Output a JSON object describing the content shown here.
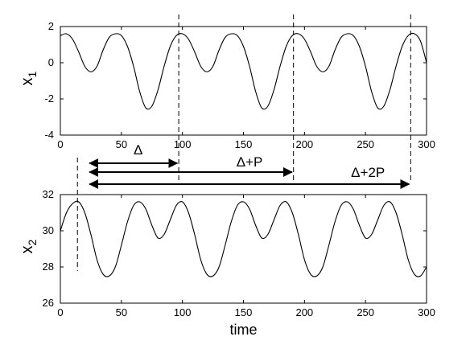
{
  "chart_data": [
    {
      "type": "line",
      "ylabel": "x",
      "ylabel_subscript": "1",
      "xlabel": "",
      "xlim": [
        0,
        300
      ],
      "ylim": [
        -4,
        2
      ],
      "xticks": [
        "0",
        "50",
        "100",
        "150",
        "200",
        "250",
        "300"
      ],
      "yticks": [
        "-4",
        "-2",
        "0",
        "2"
      ],
      "series": [
        {
          "x": [
            0,
            5,
            10,
            15,
            20,
            25,
            30,
            35,
            40,
            45,
            50,
            55,
            60,
            65,
            70,
            75,
            80,
            85,
            90,
            95,
            100,
            105,
            110,
            115,
            120,
            125,
            130,
            135,
            140,
            145,
            150,
            155,
            160,
            165,
            170,
            175,
            180,
            185,
            190,
            195,
            200,
            205,
            210,
            215,
            220,
            225,
            230,
            235,
            240,
            245,
            250,
            255,
            260,
            265,
            270,
            275,
            280,
            285,
            290,
            295,
            300
          ],
          "values": [
            1.5,
            1.6,
            1.3,
            0.6,
            -0.2,
            -0.5,
            -0.2,
            0.7,
            1.4,
            1.6,
            1.5,
            0.9,
            -0.2,
            -1.6,
            -2.5,
            -2.4,
            -1.5,
            -0.2,
            0.9,
            1.5,
            1.6,
            1.3,
            0.6,
            -0.2,
            -0.5,
            -0.2,
            0.7,
            1.4,
            1.6,
            1.5,
            0.9,
            -0.2,
            -1.6,
            -2.5,
            -2.4,
            -1.5,
            -0.2,
            0.9,
            1.5,
            1.6,
            1.3,
            0.6,
            -0.2,
            -0.5,
            -0.2,
            0.7,
            1.4,
            1.6,
            1.5,
            0.9,
            -0.2,
            -1.6,
            -2.5,
            -2.4,
            -1.5,
            -0.2,
            0.9,
            1.5,
            1.6,
            1.2,
            0.0
          ]
        }
      ],
      "vlines_x": [
        97,
        191,
        287
      ]
    },
    {
      "type": "line",
      "ylabel": "x",
      "ylabel_subscript": "2",
      "xlabel": "time",
      "xlim": [
        0,
        300
      ],
      "ylim": [
        26,
        32
      ],
      "xticks": [
        "0",
        "50",
        "100",
        "150",
        "200",
        "250",
        "300"
      ],
      "yticks": [
        "26",
        "28",
        "30",
        "32"
      ],
      "series": [
        {
          "x": [
            0,
            5,
            10,
            15,
            20,
            25,
            30,
            35,
            40,
            45,
            50,
            55,
            60,
            65,
            70,
            75,
            80,
            85,
            90,
            95,
            100,
            105,
            110,
            115,
            120,
            125,
            130,
            135,
            140,
            145,
            150,
            155,
            160,
            165,
            170,
            175,
            180,
            185,
            190,
            195,
            200,
            205,
            210,
            215,
            220,
            225,
            230,
            235,
            240,
            245,
            250,
            255,
            260,
            265,
            270,
            275,
            280,
            285,
            290,
            295,
            300
          ],
          "values": [
            30.0,
            31.0,
            31.5,
            31.6,
            31.0,
            29.8,
            28.4,
            27.6,
            27.5,
            28.0,
            29.2,
            30.5,
            31.4,
            31.6,
            31.2,
            30.3,
            29.6,
            29.8,
            30.6,
            31.4,
            31.6,
            31.0,
            29.8,
            28.4,
            27.6,
            27.5,
            28.0,
            29.2,
            30.5,
            31.4,
            31.6,
            31.2,
            30.3,
            29.6,
            29.8,
            30.6,
            31.4,
            31.6,
            31.0,
            29.8,
            28.4,
            27.6,
            27.5,
            28.0,
            29.2,
            30.5,
            31.4,
            31.6,
            31.2,
            30.3,
            29.6,
            29.8,
            30.6,
            31.4,
            31.6,
            31.0,
            29.8,
            28.4,
            27.6,
            27.5,
            28.0
          ]
        }
      ],
      "vlines_x": [
        14
      ]
    }
  ],
  "annotations": [
    {
      "label": "Δ",
      "from": 20,
      "to": 97
    },
    {
      "label": "Δ+P",
      "from": 20,
      "to": 191
    },
    {
      "label": "Δ+2P",
      "from": 20,
      "to": 287
    }
  ]
}
